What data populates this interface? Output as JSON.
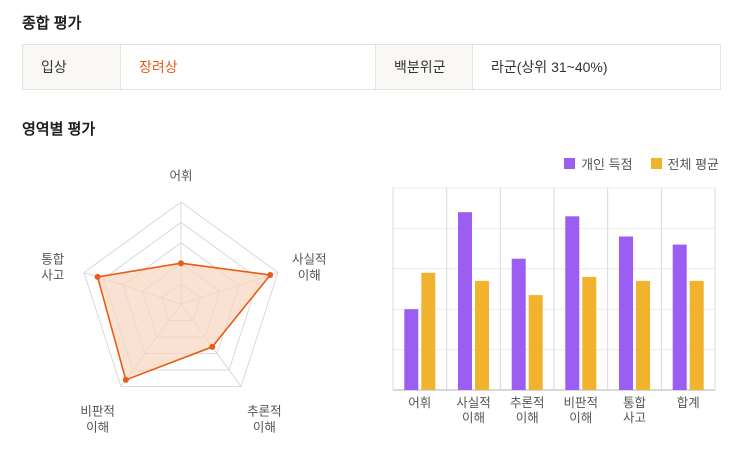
{
  "page": {
    "overall_title": "종합 평가",
    "area_title": "영역별 평가"
  },
  "summary_table": {
    "award_label": "입상",
    "award_value": "장려상",
    "percentile_label": "백분위군",
    "percentile_value": "라군(상위 31~40%)"
  },
  "colors": {
    "accent_orange": "#e85c17",
    "personal_purple": "#9c5ef2",
    "average_yellow": "#f1b32e",
    "grid_gray": "#d8d8d8",
    "axis_gray": "#b0b0b0",
    "label_gray": "#555555"
  },
  "chart_data": [
    {
      "type": "radar",
      "categories": [
        "어휘",
        "사실적 이해",
        "추론적 이해",
        "비판적 이해",
        "통합 사고"
      ],
      "series": [
        {
          "name": "개인 득점",
          "values": [
            2.0,
            4.6,
            2.6,
            4.6,
            4.3
          ]
        }
      ],
      "max": 5,
      "levels": 5,
      "grid": true,
      "stroke_color": "#e85c17",
      "fill_color": "#f8d7c0"
    },
    {
      "type": "bar",
      "categories": [
        "어휘",
        "사실적 이해",
        "추론적 이해",
        "비판적 이해",
        "통합 사고",
        "합계"
      ],
      "series": [
        {
          "name": "개인 득점",
          "color": "#9c5ef2",
          "values": [
            40,
            88,
            65,
            86,
            76,
            72
          ]
        },
        {
          "name": "전체 평균",
          "color": "#f1b32e",
          "values": [
            58,
            54,
            47,
            56,
            54,
            54
          ]
        }
      ],
      "ylim": [
        0,
        100
      ],
      "grid": true,
      "legend_position": "top-right"
    }
  ]
}
